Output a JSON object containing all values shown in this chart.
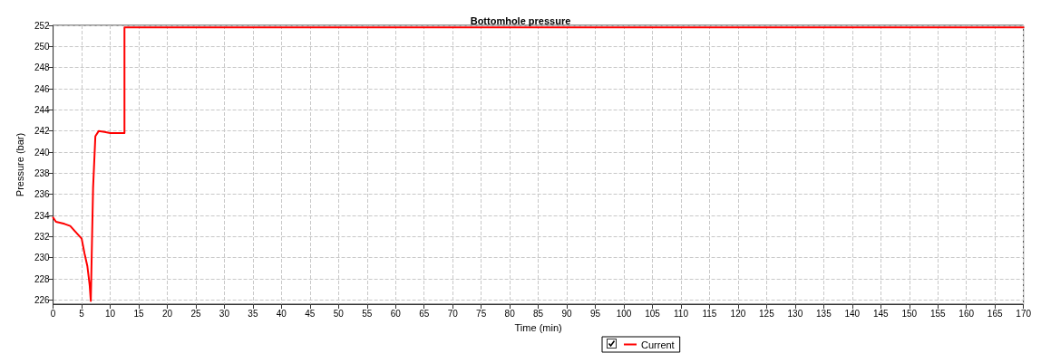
{
  "chart_data": {
    "type": "line",
    "title": "Bottomhole pressure",
    "xlabel": "Time (min)",
    "ylabel": "Pressure (bar)",
    "series": [
      {
        "name": "Current",
        "color": "#ff0000",
        "x": [
          0,
          0.5,
          2,
          3,
          4,
          5,
          5.5,
          6,
          6.4,
          6.6,
          6.8,
          7,
          7.4,
          8,
          9,
          10,
          12.5,
          12.5,
          170
        ],
        "values": [
          233.8,
          233.4,
          233.2,
          233.0,
          232.4,
          231.8,
          230.4,
          229.2,
          227.4,
          225.9,
          231.3,
          236.6,
          241.5,
          242.0,
          241.9,
          241.8,
          241.8,
          251.8,
          251.8
        ]
      }
    ],
    "xlim": [
      0,
      170
    ],
    "xticks": [
      0,
      5,
      10,
      15,
      20,
      25,
      30,
      35,
      40,
      45,
      50,
      55,
      60,
      65,
      70,
      75,
      80,
      85,
      90,
      95,
      100,
      105,
      110,
      115,
      120,
      125,
      130,
      135,
      140,
      145,
      150,
      155,
      160,
      165,
      170
    ],
    "ylim": [
      225.6,
      252
    ],
    "yticks": [
      226,
      228,
      230,
      232,
      234,
      236,
      238,
      240,
      242,
      244,
      246,
      248,
      250,
      252
    ],
    "grid": true,
    "legend": "bottom",
    "marker": "none",
    "line_style": "solid"
  }
}
